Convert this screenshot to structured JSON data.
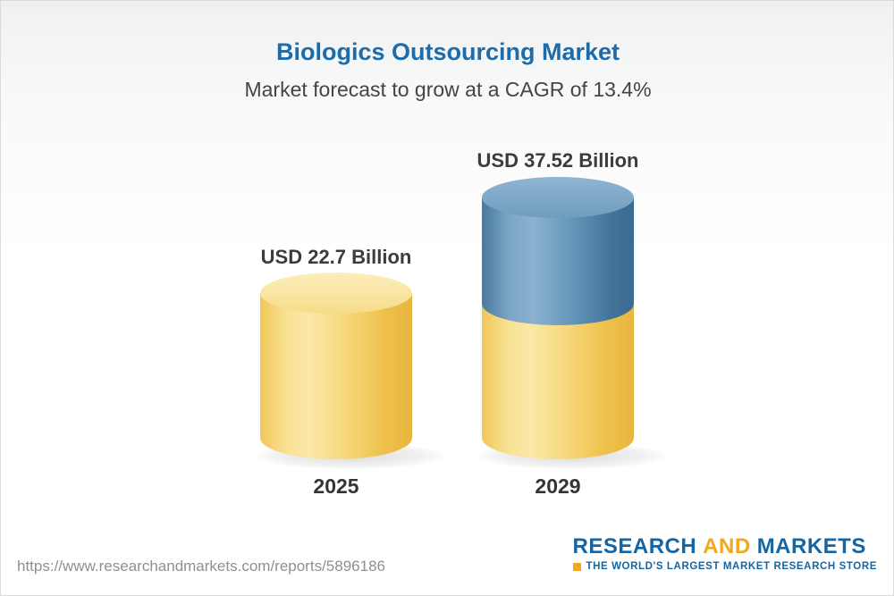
{
  "header": {
    "title": "Biologics Outsourcing Market",
    "subtitle": "Market forecast to grow at a CAGR of 13.4%"
  },
  "chart_data": {
    "type": "bar",
    "title": "Biologics Outsourcing Market",
    "subtitle": "Market forecast to grow at a CAGR of 13.4%",
    "categories": [
      "2025",
      "2029"
    ],
    "values": [
      22.7,
      37.52
    ],
    "unit": "USD Billion",
    "value_labels": [
      "USD 22.7 Billion",
      "USD 37.52 Billion"
    ],
    "cagr_percent": 13.4,
    "bar_style": "3d-cylinder",
    "bar_colors": [
      "#f5cf6e",
      "#5b8fb4"
    ],
    "growth_segment_note": "2029 bar shows 2025 base in yellow with incremental growth in blue",
    "xlabel": "",
    "ylabel": "",
    "ylim": [
      0,
      40
    ],
    "grid": false,
    "legend": false
  },
  "footer": {
    "url": "https://www.researchandmarkets.com/reports/5896186",
    "logo": {
      "research": "RESEARCH",
      "and": "AND",
      "markets": "MARKETS",
      "tagline": "THE WORLD'S LARGEST MARKET RESEARCH STORE"
    }
  },
  "colors": {
    "title_blue": "#1d6ba8",
    "subtitle_gray": "#424448",
    "cylinder_yellow": "#f5cf6e",
    "cylinder_blue": "#5b8fb4",
    "logo_blue": "#1565a3",
    "logo_gold": "#f0a81d"
  }
}
